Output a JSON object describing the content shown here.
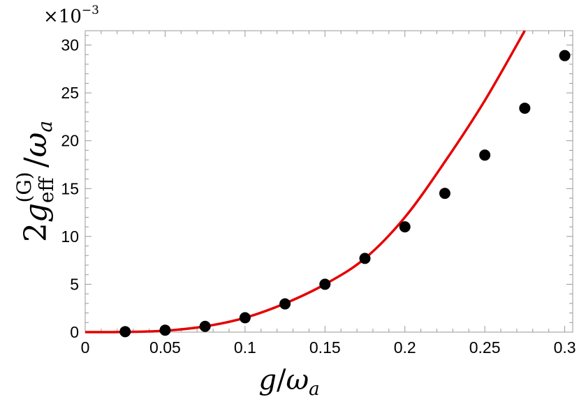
{
  "chart_data": {
    "type": "scatter",
    "xlabel": {
      "var": "g",
      "slash": "/",
      "denom": "ω",
      "denom_sub": "a"
    },
    "ylabel": {
      "coef": "2",
      "var": "g",
      "sub": "eff",
      "sup": "(G)",
      "slash": "/",
      "denom": "ω",
      "denom_sub": "a"
    },
    "y_multiplier": {
      "base": "×10",
      "exp": "−3"
    },
    "xlim": [
      0,
      0.305
    ],
    "ylim": [
      0,
      31.5
    ],
    "x_ticks": [
      0,
      0.05,
      0.1,
      0.15,
      0.2,
      0.25,
      0.3
    ],
    "x_tick_labels": [
      "0",
      "0.05",
      "0.1",
      "0.15",
      "0.2",
      "0.25",
      "0.3"
    ],
    "y_ticks": [
      0,
      5,
      10,
      15,
      20,
      25,
      30
    ],
    "y_tick_labels": [
      "0",
      "5",
      "10",
      "15",
      "20",
      "25",
      "30"
    ],
    "grid": false,
    "series": [
      {
        "kind": "line",
        "color": "#e60000",
        "x": [
          0,
          0.025,
          0.05,
          0.075,
          0.1,
          0.125,
          0.15,
          0.175,
          0.2,
          0.225,
          0.25,
          0.275
        ],
        "y": [
          0,
          0.02,
          0.15,
          0.6,
          1.5,
          3.0,
          5.0,
          7.7,
          12.0,
          17.8,
          24.2,
          31.5
        ]
      },
      {
        "kind": "scatter",
        "color": "#000000",
        "x": [
          0.025,
          0.05,
          0.075,
          0.1,
          0.125,
          0.15,
          0.175,
          0.2,
          0.225,
          0.25,
          0.275,
          0.3
        ],
        "y": [
          0.05,
          0.2,
          0.6,
          1.5,
          2.95,
          5.0,
          7.7,
          11.0,
          14.5,
          18.5,
          23.4,
          28.9
        ]
      }
    ]
  }
}
